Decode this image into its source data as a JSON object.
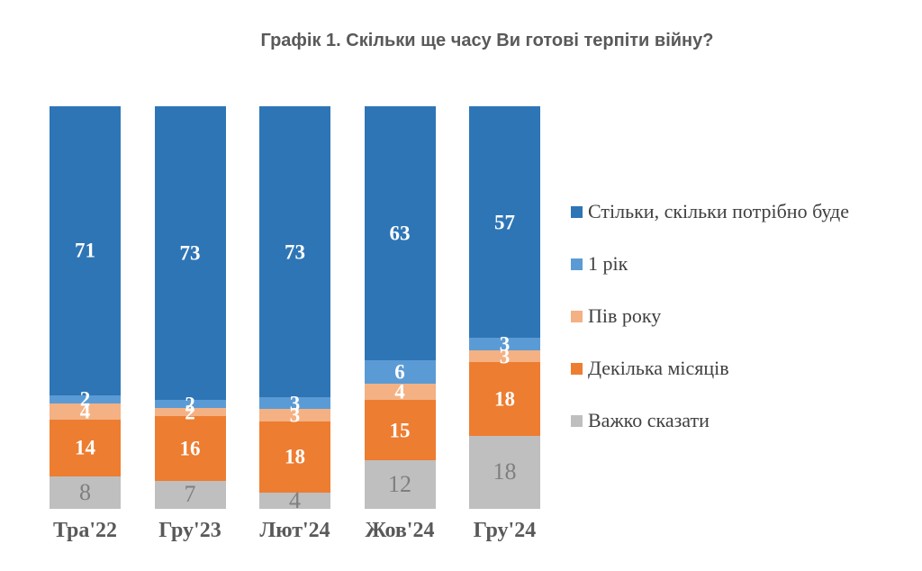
{
  "title": "Графік 1. Скільки ще часу Ви готові терпіти війну?",
  "chart_data": {
    "type": "bar",
    "stacked": true,
    "percent_stacked": true,
    "title": "Графік 1. Скільки ще часу Ви готові терпіти війну?",
    "xlabel": "",
    "ylabel": "",
    "ylim": [
      0,
      100
    ],
    "grid": false,
    "data_labels": true,
    "legend_position": "right",
    "categories": [
      "Тра'22",
      "Гру'23",
      "Лют'24",
      "Жов'24",
      "Гру'24"
    ],
    "series": [
      {
        "name": "Стільки, скільки потрібно буде",
        "color": "#2E75B6",
        "label_color": "#FFFFFF",
        "values": [
          71,
          73,
          73,
          63,
          57
        ]
      },
      {
        "name": "1 рік",
        "color": "#5B9BD5",
        "label_color": "#FFFFFF",
        "values": [
          2,
          2,
          3,
          6,
          3
        ]
      },
      {
        "name": "Пів року",
        "color": "#F4B183",
        "label_color": "#FFFFFF",
        "values": [
          4,
          2,
          3,
          4,
          3
        ]
      },
      {
        "name": "Декілька місяців",
        "color": "#ED7D31",
        "label_color": "#FFFFFF",
        "values": [
          14,
          16,
          18,
          15,
          18
        ]
      },
      {
        "name": "Важко сказати",
        "color": "#BFBFBF",
        "label_color": "#7F7F7F",
        "values": [
          8,
          7,
          4,
          12,
          18
        ]
      }
    ]
  }
}
